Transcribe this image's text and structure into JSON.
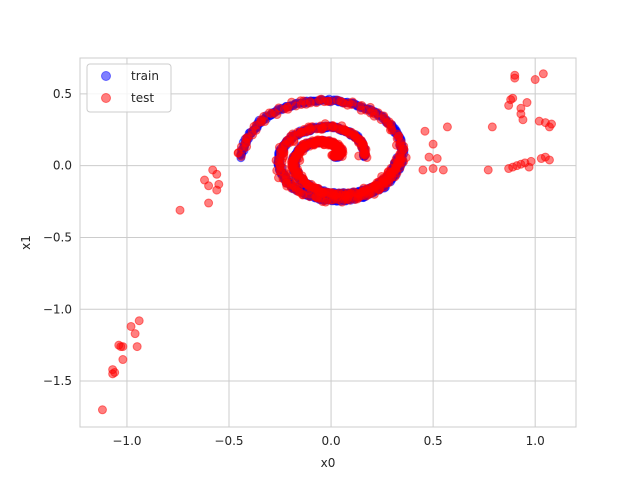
{
  "chart_data": {
    "type": "scatter",
    "xlabel": "x0",
    "ylabel": "x1",
    "xlim": [
      -1.23,
      1.2
    ],
    "ylim": [
      -1.82,
      0.75
    ],
    "xticks": [
      -1.0,
      -0.5,
      0.0,
      0.5,
      1.0
    ],
    "yticks": [
      0.5,
      0.0,
      -0.5,
      -1.0,
      -1.5
    ],
    "xtick_labels": [
      "−1.0",
      "−0.5",
      "0.0",
      "0.5",
      "1.0"
    ],
    "ytick_labels": [
      "0.5",
      "0.0",
      "−0.5",
      "−1.0",
      "−1.5"
    ],
    "grid": true,
    "legend_position": "top-left",
    "series": [
      {
        "name": "train",
        "color": "#0000ff",
        "alpha": 0.5,
        "shape": "two-arm spiral",
        "outer_arm": {
          "center": [
            0.0,
            0.06
          ],
          "radius_start": 0.16,
          "radius_end": 0.44,
          "angle_start_deg": 0,
          "angle_end_deg": 540
        },
        "inner_arm": {
          "center": [
            0.0,
            0.06
          ],
          "radius_start": 0.02,
          "radius_end": 0.33,
          "angle_start_deg": 0,
          "angle_end_deg": 360
        }
      },
      {
        "name": "test",
        "color": "#ff0000",
        "alpha": 0.5,
        "shape": "spiral with outliers",
        "spiral_jitter": 0.025,
        "outliers": [
          [
            -1.12,
            -1.7
          ],
          [
            -1.07,
            -1.45
          ],
          [
            -1.07,
            -1.42
          ],
          [
            -1.06,
            -1.44
          ],
          [
            -1.04,
            -1.25
          ],
          [
            -1.03,
            -1.26
          ],
          [
            -1.02,
            -1.26
          ],
          [
            -1.02,
            -1.35
          ],
          [
            -0.98,
            -1.12
          ],
          [
            -0.96,
            -1.17
          ],
          [
            -0.95,
            -1.26
          ],
          [
            -0.94,
            -1.08
          ],
          [
            -0.74,
            -0.31
          ],
          [
            -0.6,
            -0.26
          ],
          [
            -0.62,
            -0.1
          ],
          [
            -0.6,
            -0.14
          ],
          [
            -0.58,
            -0.03
          ],
          [
            -0.56,
            -0.06
          ],
          [
            -0.55,
            -0.13
          ],
          [
            -0.56,
            -0.17
          ],
          [
            0.45,
            -0.03
          ],
          [
            0.48,
            0.06
          ],
          [
            0.5,
            -0.02
          ],
          [
            0.52,
            0.05
          ],
          [
            0.55,
            -0.03
          ],
          [
            0.46,
            0.24
          ],
          [
            0.5,
            0.15
          ],
          [
            0.57,
            0.27
          ],
          [
            0.77,
            -0.03
          ],
          [
            0.79,
            0.27
          ],
          [
            0.87,
            0.42
          ],
          [
            0.88,
            0.46
          ],
          [
            0.89,
            0.47
          ],
          [
            0.9,
            0.61
          ],
          [
            0.9,
            0.63
          ],
          [
            0.93,
            0.4
          ],
          [
            0.93,
            0.36
          ],
          [
            0.94,
            0.32
          ],
          [
            0.96,
            0.44
          ],
          [
            0.87,
            -0.02
          ],
          [
            0.89,
            -0.01
          ],
          [
            0.91,
            0.0
          ],
          [
            0.93,
            0.01
          ],
          [
            0.95,
            0.02
          ],
          [
            0.97,
            -0.01
          ],
          [
            1.0,
            0.6
          ],
          [
            1.02,
            0.31
          ],
          [
            1.04,
            0.64
          ],
          [
            1.05,
            0.3
          ],
          [
            1.07,
            0.27
          ],
          [
            1.08,
            0.29
          ],
          [
            1.03,
            0.05
          ],
          [
            1.05,
            0.06
          ],
          [
            1.07,
            0.04
          ],
          [
            0.98,
            0.03
          ]
        ]
      }
    ]
  }
}
